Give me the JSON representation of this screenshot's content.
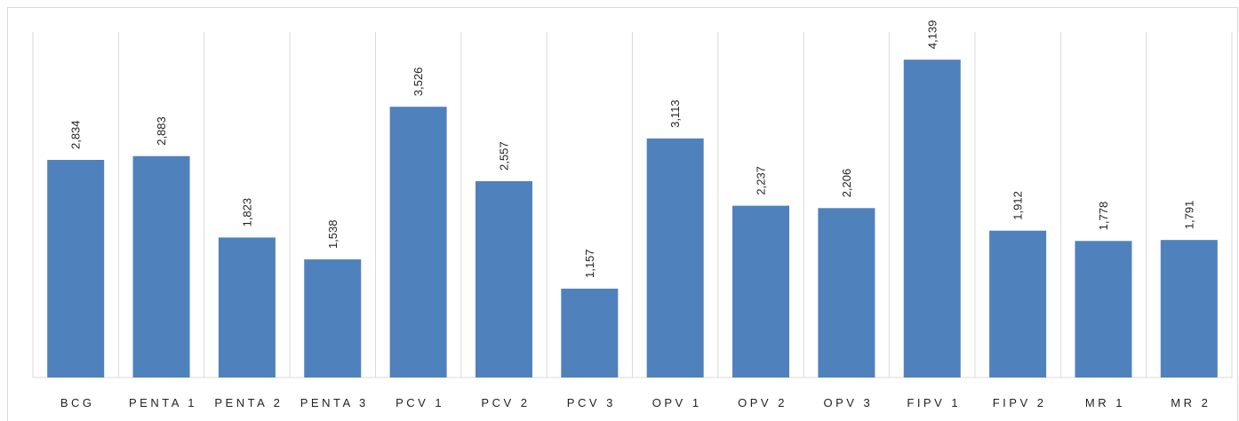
{
  "chart_data": {
    "type": "bar",
    "categories": [
      "BCG",
      "PENTA 1",
      "PENTA 2",
      "PENTA 3",
      "PCV 1",
      "PCV 2",
      "PCV 3",
      "OPV 1",
      "OPV 2",
      "OPV 3",
      "FIPV 1",
      "FIPV 2",
      "MR 1",
      "MR 2"
    ],
    "values": [
      2834,
      2883,
      1823,
      1538,
      3526,
      2557,
      1157,
      3113,
      2237,
      2206,
      4139,
      1912,
      1778,
      1791
    ],
    "value_labels": [
      "2,834",
      "2,883",
      "1,823",
      "1,538",
      "3,526",
      "2,557",
      "1,157",
      "3,113",
      "2,237",
      "2,206",
      "4,139",
      "1,912",
      "1,778",
      "1,791"
    ],
    "color": "#4f81bd",
    "ylim": [
      0,
      4500
    ]
  }
}
